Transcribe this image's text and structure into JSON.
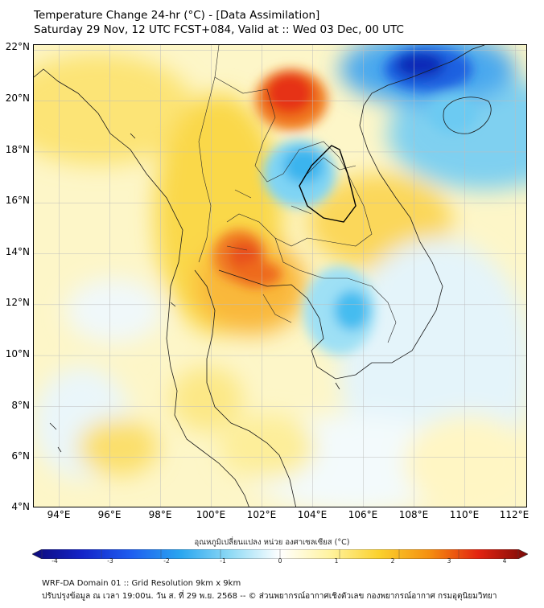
{
  "header": {
    "title_line1": "Temperature Change 24-hr (°C) - [Data Assimilation]",
    "title_line2": "Saturday 29 Nov, 12 UTC FCST+084, Valid at :: Wed 03 Dec, 00 UTC"
  },
  "map": {
    "lat_labels": [
      "22°N",
      "20°N",
      "18°N",
      "16°N",
      "14°N",
      "12°N",
      "10°N",
      "8°N",
      "6°N",
      "4°N"
    ],
    "lon_labels": [
      "94°E",
      "96°E",
      "98°E",
      "100°E",
      "102°E",
      "104°E",
      "106°E",
      "108°E",
      "110°E",
      "112°E"
    ],
    "lat_values": [
      22,
      20,
      18,
      16,
      14,
      12,
      10,
      8,
      6,
      4
    ],
    "lon_values": [
      94,
      96,
      98,
      100,
      102,
      104,
      106,
      108,
      110,
      112
    ],
    "extent": {
      "lon_min": 93,
      "lon_max": 112.5,
      "lat_min": 4,
      "lat_max": 22.2
    },
    "features": [
      {
        "name": "warm-max-northern-laos",
        "lon": 102.8,
        "lat": 20.8,
        "value": 2.5
      },
      {
        "name": "warm-max-central-thailand",
        "lon": 101.2,
        "lat": 13.8,
        "value": 2.3
      },
      {
        "name": "cold-min-gulf-of-tonkin",
        "lon": 108.2,
        "lat": 21.5,
        "value": -3.0
      },
      {
        "name": "cold-area-northeast-thailand",
        "lon": 103.5,
        "lat": 17.0,
        "value": -1.1
      },
      {
        "name": "cold-area-cambodia",
        "lon": 105.2,
        "lat": 12.2,
        "value": -1.2
      },
      {
        "name": "cold-area-hainan",
        "lon": 109.6,
        "lat": 19.2,
        "value": -1.0
      }
    ]
  },
  "colorbar": {
    "title": "อุณหภูมิเปลี่ยนแปลง หน่วย องศาเซลเซียส (°C)",
    "min": -4,
    "max": 4,
    "tick_labels": [
      "-4",
      "-3",
      "-2",
      "-1",
      "0",
      "1",
      "2",
      "3",
      "4"
    ],
    "tick_values": [
      -4,
      -3,
      -2,
      -1,
      0,
      1,
      2,
      3,
      4
    ],
    "colors": [
      "#0d0a7a",
      "#1424c8",
      "#1e5ef0",
      "#2aa6f0",
      "#8fdaf5",
      "#ffffff",
      "#fff3a0",
      "#fbd12c",
      "#f59010",
      "#e32410",
      "#7a0a08"
    ]
  },
  "footer": {
    "line1": "WRF-DA Domain 01 :: Grid Resolution 9km x 9km",
    "line2": "ปรับปรุงข้อมูล ณ เวลา 19:00น. วัน ส. ที่ 29 พ.ย. 2568 -- © ส่วนพยากรณ์อากาศเชิงตัวเลข กองพยากรณ์อากาศ กรมอุตุนิยมวิทยา"
  }
}
